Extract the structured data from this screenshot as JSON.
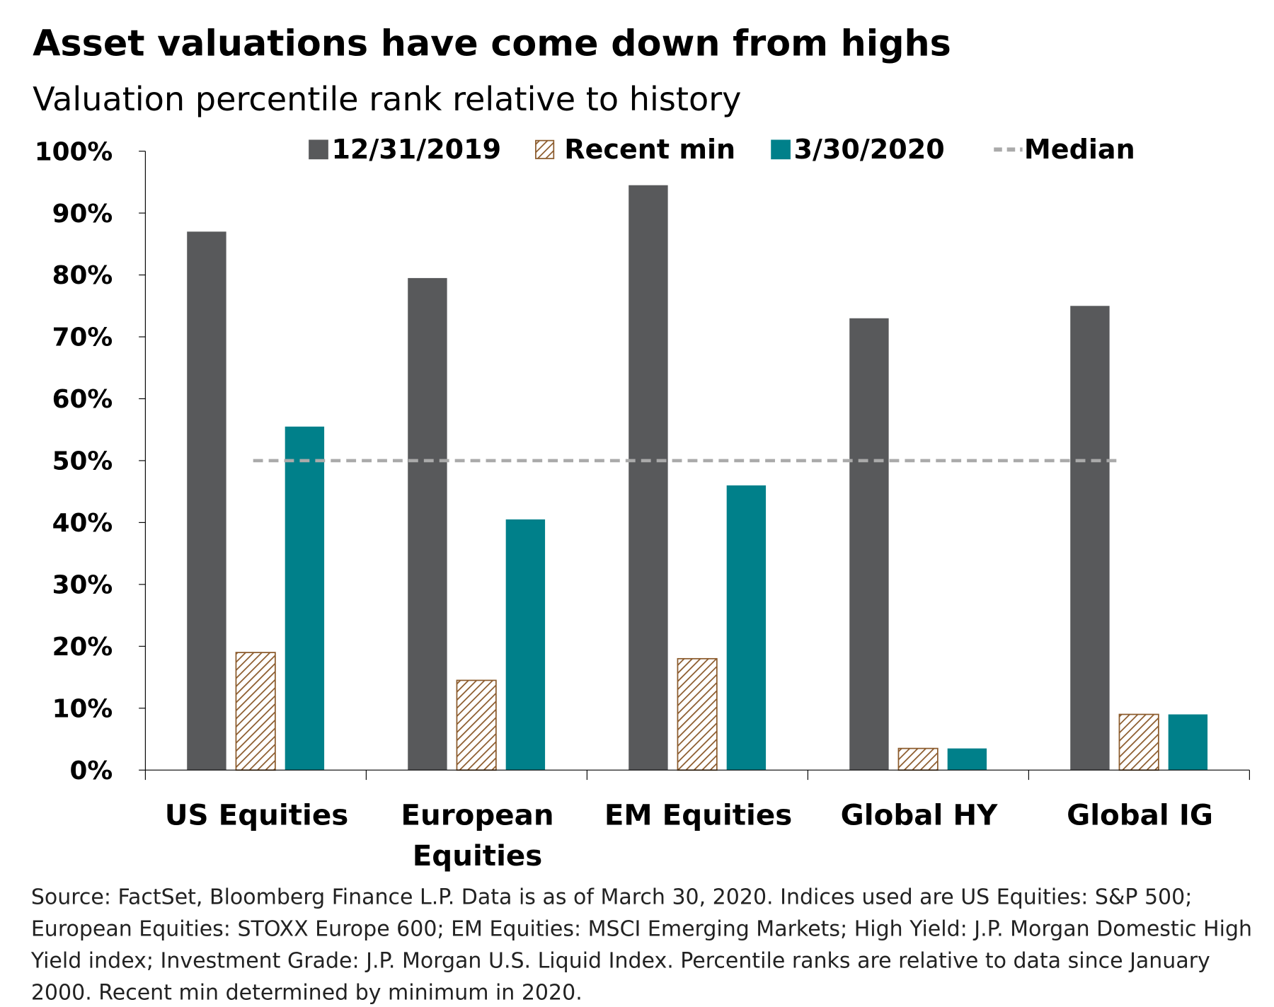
{
  "title": "Asset valuations have come down from highs",
  "subtitle": "Valuation percentile rank relative to history",
  "chart_data": {
    "type": "bar",
    "categories": [
      [
        "US Equities"
      ],
      [
        "European",
        "Equities"
      ],
      [
        "EM Equities"
      ],
      [
        "Global HY"
      ],
      [
        "Global IG"
      ]
    ],
    "series": [
      {
        "name": "12/31/2019",
        "values": [
          87,
          79.5,
          94.5,
          73,
          75
        ],
        "color": "#58595b",
        "pattern": "solid"
      },
      {
        "name": "Recent min",
        "values": [
          19,
          14.5,
          18,
          3.5,
          9
        ],
        "color": "#8b5a2b",
        "pattern": "hatched"
      },
      {
        "name": "3/30/2020",
        "values": [
          55.5,
          40.5,
          46,
          3.5,
          9
        ],
        "color": "#00808a",
        "pattern": "solid"
      }
    ],
    "reference_line": {
      "name": "Median",
      "value": 50,
      "color": "#aaaaaa",
      "style": "dashed"
    },
    "ylim": [
      0,
      100
    ],
    "yticks": [
      "0%",
      "10%",
      "20%",
      "30%",
      "40%",
      "50%",
      "60%",
      "70%",
      "80%",
      "90%",
      "100%"
    ],
    "legend_position": "top",
    "grid": false
  },
  "source_lines": [
    "Source: FactSet, Bloomberg Finance L.P. Data is as of March 30, 2020. Indices used are US Equities: S&P 500;",
    "European Equities: STOXX Europe 600; EM Equities: MSCI Emerging Markets; High Yield: J.P. Morgan Domestic High",
    "Yield index; Investment Grade: J.P. Morgan U.S. Liquid Index. Percentile ranks are relative to data since January",
    "2000. Recent min determined by minimum in 2020."
  ]
}
